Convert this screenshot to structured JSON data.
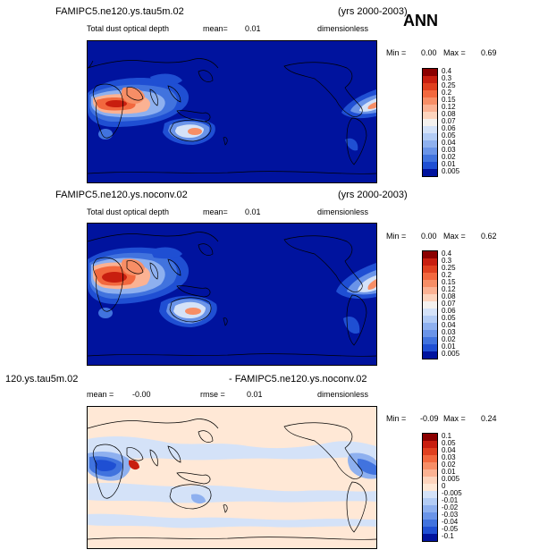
{
  "header": {
    "season": "ANN"
  },
  "panels": [
    {
      "case_name": "FAMIPC5.ne120.ys.tau5m.02",
      "years": "(yrs 2000-2003)",
      "variable": "Total dust optical depth",
      "mean_label": "mean=",
      "mean_value": "0.01",
      "units": "dimensionless",
      "min_label": "Min =",
      "min_value": "0.00",
      "max_label": "Max =",
      "max_value": "0.69"
    },
    {
      "case_name": "FAMIPC5.ne120.ys.noconv.02",
      "years": "(yrs 2000-2003)",
      "variable": "Total dust optical depth",
      "mean_label": "mean=",
      "mean_value": "0.01",
      "units": "dimensionless",
      "min_label": "Min =",
      "min_value": "0.00",
      "max_label": "Max =",
      "max_value": "0.62"
    },
    {
      "case_name_left": "120.ys.tau5m.02",
      "case_name_right": "- FAMIPC5.ne120.ys.noconv.02",
      "mean_label": "mean =",
      "mean_value": "-0.00",
      "rmse_label": "rmse =",
      "rmse_value": "0.01",
      "units": "dimensionless",
      "min_label": "Min =",
      "min_value": "-0.09",
      "max_label": "Max =",
      "max_value": "0.24"
    }
  ],
  "chart_data": [
    {
      "type": "heatmap",
      "title": "FAMIPC5.ne120.ys.tau5m.02",
      "levels": [
        "0.4",
        "0.3",
        "0.25",
        "0.2",
        "0.15",
        "0.12",
        "0.08",
        "0.07",
        "0.06",
        "0.05",
        "0.04",
        "0.03",
        "0.02",
        "0.01",
        "0.005"
      ],
      "colors": [
        "#8b0000",
        "#c81e0f",
        "#e0401f",
        "#f2683e",
        "#f78e66",
        "#fbb293",
        "#fdd4bd",
        "#f4f1ee",
        "#d4e2f8",
        "#b3ccf5",
        "#8eb0ef",
        "#6a94e8",
        "#4173de",
        "#1f4fd3",
        "#00139e"
      ],
      "min": 0.0,
      "max": 0.69,
      "mean": 0.01
    },
    {
      "type": "heatmap",
      "title": "FAMIPC5.ne120.ys.noconv.02",
      "levels": [
        "0.4",
        "0.3",
        "0.25",
        "0.2",
        "0.15",
        "0.12",
        "0.08",
        "0.07",
        "0.06",
        "0.05",
        "0.04",
        "0.03",
        "0.02",
        "0.01",
        "0.005"
      ],
      "colors": [
        "#8b0000",
        "#c81e0f",
        "#e0401f",
        "#f2683e",
        "#f78e66",
        "#fbb293",
        "#fdd4bd",
        "#f4f1ee",
        "#d4e2f8",
        "#b3ccf5",
        "#8eb0ef",
        "#6a94e8",
        "#4173de",
        "#1f4fd3",
        "#00139e"
      ],
      "min": 0.0,
      "max": 0.62,
      "mean": 0.01
    },
    {
      "type": "heatmap",
      "title": "120.ys.tau5m.02 - FAMIPC5.ne120.ys.noconv.02",
      "levels": [
        "0.1",
        "0.05",
        "0.04",
        "0.03",
        "0.02",
        "0.01",
        "0.005",
        "0",
        "-0.005",
        "-0.01",
        "-0.02",
        "-0.03",
        "-0.04",
        "-0.05",
        "-0.1"
      ],
      "colors": [
        "#8b0000",
        "#c81e0f",
        "#e0401f",
        "#f2683e",
        "#f78e66",
        "#fbb293",
        "#fdd4bd",
        "#ffe8d6",
        "#d4e2f8",
        "#b3ccf5",
        "#8eb0ef",
        "#6a94e8",
        "#4173de",
        "#1f4fd3",
        "#00139e"
      ],
      "min": -0.09,
      "max": 0.24,
      "mean": -0.0,
      "rmse": 0.01
    }
  ]
}
